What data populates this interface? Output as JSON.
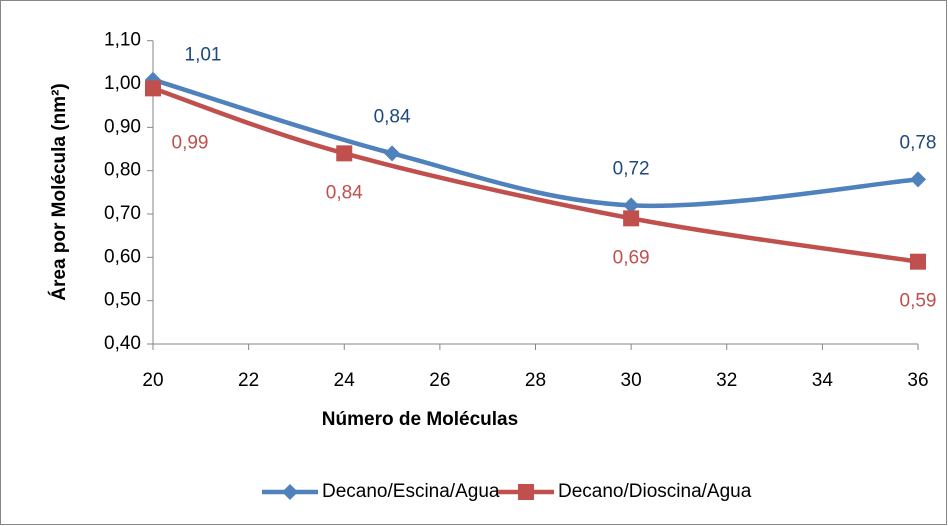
{
  "chart_data": {
    "type": "line",
    "smooth": true,
    "x_label": "Número de Moléculas",
    "y_label": "Área por Molécula (nm²)",
    "xlim": [
      20,
      36
    ],
    "xticks": [
      20,
      22,
      24,
      26,
      28,
      30,
      32,
      34,
      36
    ],
    "ylim": [
      0.4,
      1.1
    ],
    "yticks": [
      {
        "value": 0.4,
        "label": "0,40"
      },
      {
        "value": 0.5,
        "label": "0,50"
      },
      {
        "value": 0.6,
        "label": "0,60"
      },
      {
        "value": 0.7,
        "label": "0,70"
      },
      {
        "value": 0.8,
        "label": "0,80"
      },
      {
        "value": 0.9,
        "label": "0,90"
      },
      {
        "value": 1.0,
        "label": "1,00"
      },
      {
        "value": 1.1,
        "label": "1,10"
      }
    ],
    "legend": "bottom",
    "series": [
      {
        "name": "Decano/Escina/Agua",
        "color": "#4f81bd",
        "label_color": "#1f497d",
        "marker": "diamond",
        "x": [
          20,
          25,
          30,
          36
        ],
        "values": [
          1.01,
          0.84,
          0.72,
          0.78
        ],
        "value_labels": [
          "1,01",
          "0,84",
          "0,72",
          "0,78"
        ]
      },
      {
        "name": "Decano/Dioscina/Agua",
        "color": "#c0504d",
        "label_color": "#c0504d",
        "marker": "square",
        "x": [
          20,
          24,
          30,
          36
        ],
        "values": [
          0.99,
          0.84,
          0.69,
          0.59
        ],
        "value_labels": [
          "0,99",
          "0,84",
          "0,69",
          "0,59"
        ]
      }
    ]
  }
}
